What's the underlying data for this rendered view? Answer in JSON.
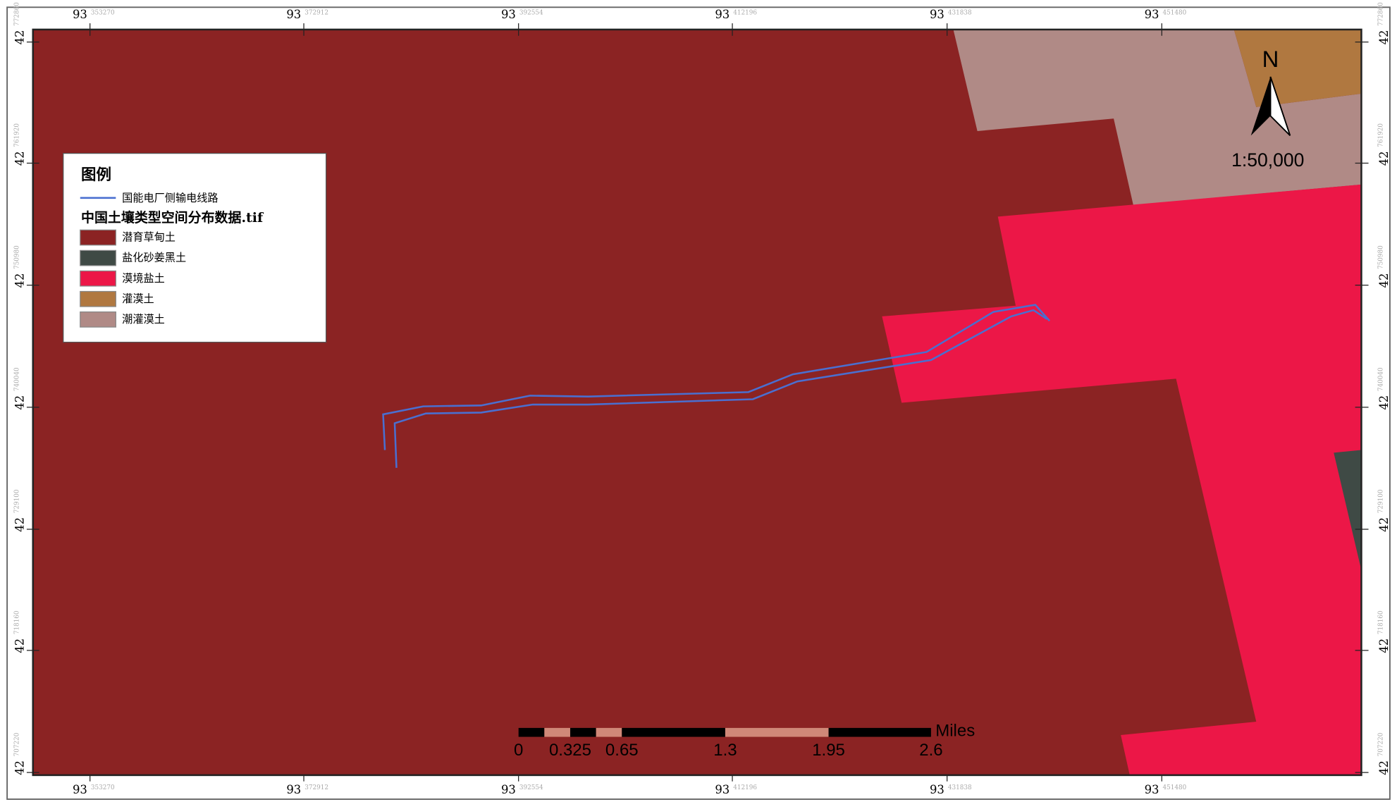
{
  "legend": {
    "title": "图例",
    "line_item": {
      "label": "国能电厂侧输电线路",
      "color": "#4a6fd0"
    },
    "raster_title": "中国土壤类型空间分布数据.tif",
    "classes": [
      {
        "label": "潜育草甸土",
        "color": "#8b2323"
      },
      {
        "label": "盐化砂姜黑土",
        "color": "#3f4a45"
      },
      {
        "label": "漠境盐土",
        "color": "#ec1747"
      },
      {
        "label": "灌漠土",
        "color": "#b07840"
      },
      {
        "label": "潮灌漠土",
        "color": "#b08a86"
      }
    ]
  },
  "north_arrow": {
    "label": "N"
  },
  "scale_text": "1:50,000",
  "scale_bar": {
    "unit": "Miles",
    "labels": [
      "0",
      "0.325",
      "0.65",
      "1.3",
      "1.95",
      "2.6"
    ]
  },
  "grid_labels": {
    "lon": [
      {
        "deg": "93",
        "min": "353270"
      },
      {
        "deg": "93",
        "min": "372912"
      },
      {
        "deg": "93",
        "min": "392554"
      },
      {
        "deg": "93",
        "min": "412196"
      },
      {
        "deg": "93",
        "min": "431838"
      },
      {
        "deg": "93",
        "min": "451480"
      }
    ],
    "lat": [
      {
        "deg": "42",
        "min": "772860"
      },
      {
        "deg": "42",
        "min": "761920"
      },
      {
        "deg": "42",
        "min": "750980"
      },
      {
        "deg": "42",
        "min": "740040"
      },
      {
        "deg": "42",
        "min": "729100"
      },
      {
        "deg": "42",
        "min": "718160"
      },
      {
        "deg": "42",
        "min": "707220"
      }
    ]
  }
}
